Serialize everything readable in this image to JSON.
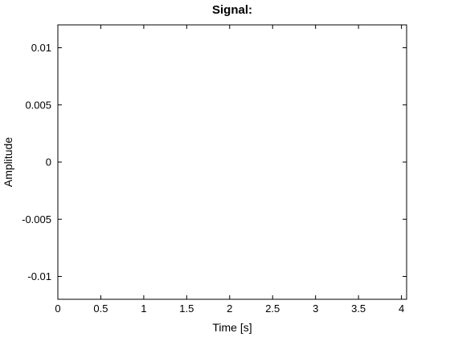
{
  "chart_data": {
    "type": "line",
    "title": "Signal:",
    "xlabel": "Time [s]",
    "ylabel": "Amplitude",
    "xlim": [
      0,
      4.06
    ],
    "ylim": [
      -0.012,
      0.012
    ],
    "xticks": [
      0,
      0.5,
      1,
      1.5,
      2,
      2.5,
      3,
      3.5,
      4
    ],
    "xtick_labels": [
      "0",
      "0.5",
      "1",
      "1.5",
      "2",
      "2.5",
      "3",
      "3.5",
      "4"
    ],
    "yticks": [
      0.01,
      0.005,
      0,
      -0.005,
      -0.01
    ],
    "ytick_labels": [
      "0.01",
      "0.005",
      "0",
      "-0.005",
      "-0.01"
    ],
    "grid": false,
    "series": []
  }
}
